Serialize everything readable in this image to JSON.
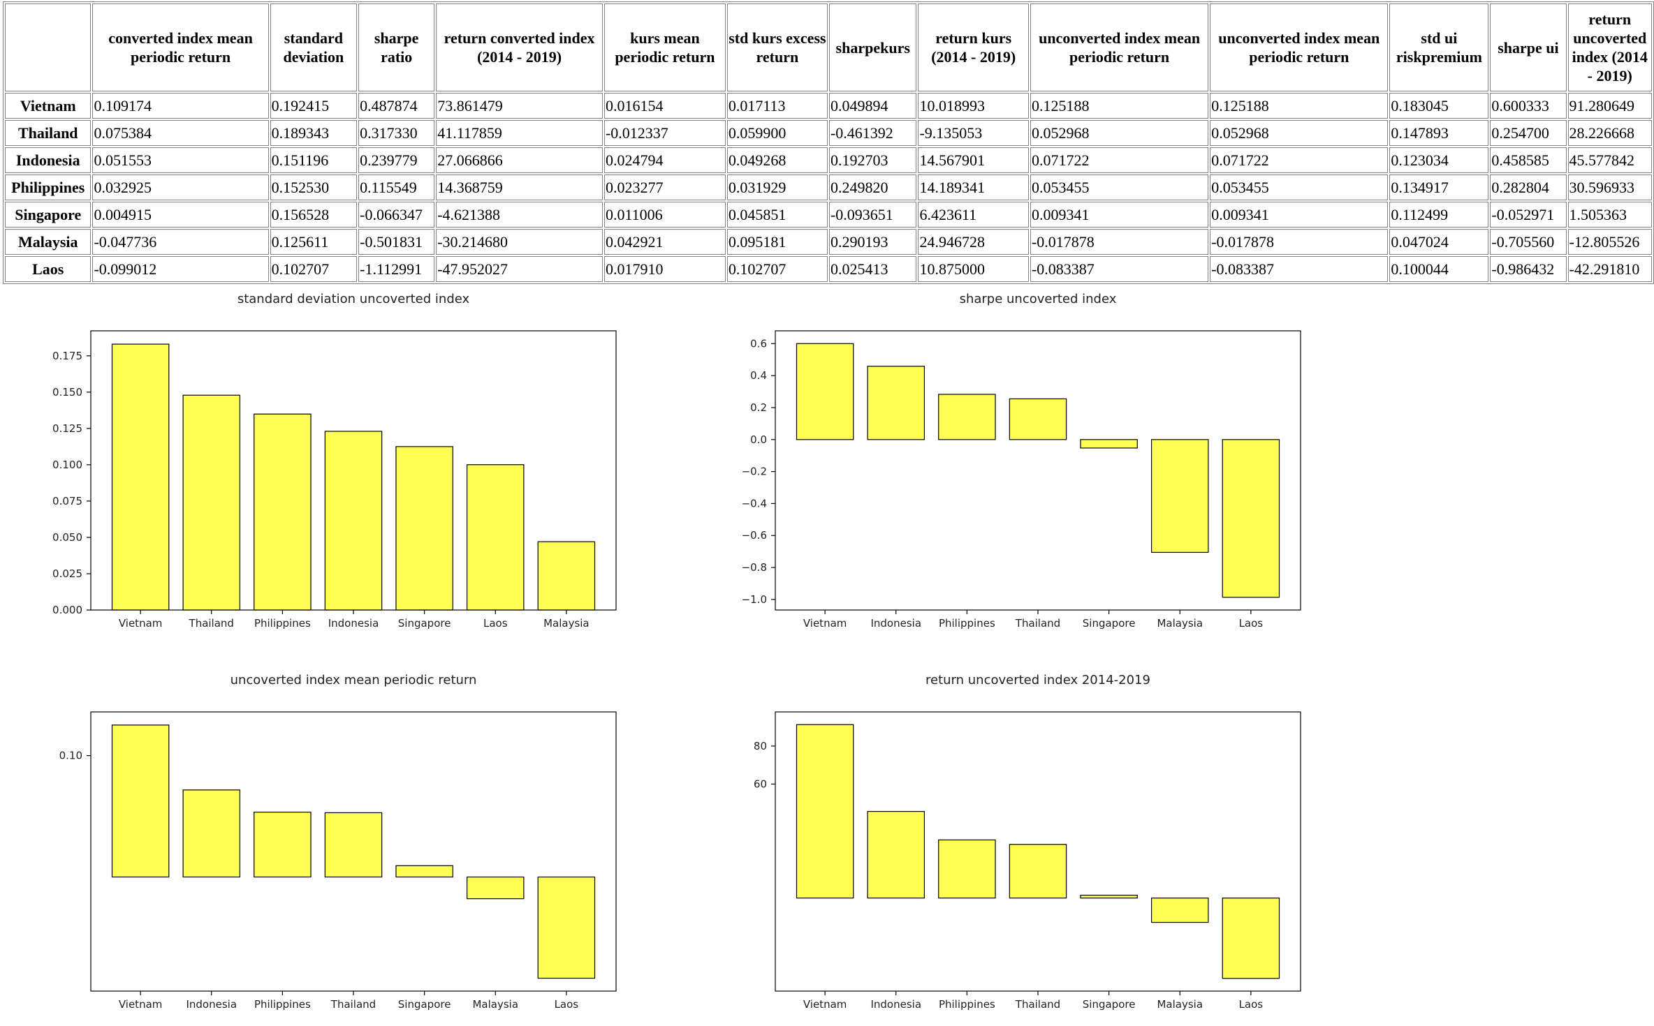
{
  "table": {
    "columns": [
      "",
      "converted index mean periodic return",
      "standard deviation",
      "sharpe ratio",
      "return converted index (2014 - 2019)",
      "kurs mean periodic return",
      "std kurs excess return",
      "sharpekurs",
      "return kurs (2014 - 2019)",
      "unconverted index mean periodic return",
      "unconverted index mean periodic return",
      "std ui riskpremium",
      "sharpe ui",
      "return uncoverted index (2014 - 2019)"
    ],
    "rows": [
      {
        "country": "Vietnam",
        "values": [
          "0.109174",
          "0.192415",
          "0.487874",
          "73.861479",
          "0.016154",
          "0.017113",
          "0.049894",
          "10.018993",
          "0.125188",
          "0.125188",
          "0.183045",
          "0.600333",
          "91.280649"
        ]
      },
      {
        "country": "Thailand",
        "values": [
          "0.075384",
          "0.189343",
          "0.317330",
          "41.117859",
          "-0.012337",
          "0.059900",
          "-0.461392",
          "-9.135053",
          "0.052968",
          "0.052968",
          "0.147893",
          "0.254700",
          "28.226668"
        ]
      },
      {
        "country": "Indonesia",
        "values": [
          "0.051553",
          "0.151196",
          "0.239779",
          "27.066866",
          "0.024794",
          "0.049268",
          "0.192703",
          "14.567901",
          "0.071722",
          "0.071722",
          "0.123034",
          "0.458585",
          "45.577842"
        ]
      },
      {
        "country": "Philippines",
        "values": [
          "0.032925",
          "0.152530",
          "0.115549",
          "14.368759",
          "0.023277",
          "0.031929",
          "0.249820",
          "14.189341",
          "0.053455",
          "0.053455",
          "0.134917",
          "0.282804",
          "30.596933"
        ]
      },
      {
        "country": "Singapore",
        "values": [
          "0.004915",
          "0.156528",
          "-0.066347",
          "-4.621388",
          "0.011006",
          "0.045851",
          "-0.093651",
          "6.423611",
          "0.009341",
          "0.009341",
          "0.112499",
          "-0.052971",
          "1.505363"
        ]
      },
      {
        "country": "Malaysia",
        "values": [
          "-0.047736",
          "0.125611",
          "-0.501831",
          "-30.214680",
          "0.042921",
          "0.095181",
          "0.290193",
          "24.946728",
          "-0.017878",
          "-0.017878",
          "0.047024",
          "-0.705560",
          "-12.805526"
        ]
      },
      {
        "country": "Laos",
        "values": [
          "-0.099012",
          "0.102707",
          "-1.112991",
          "-47.952027",
          "0.017910",
          "0.102707",
          "0.025413",
          "10.875000",
          "-0.083387",
          "-0.083387",
          "0.100044",
          "-0.986432",
          "-42.291810"
        ]
      }
    ]
  },
  "chart_data": [
    {
      "type": "bar",
      "title": "standard deviation uncoverted index",
      "categories": [
        "Vietnam",
        "Thailand",
        "Philippines",
        "Indonesia",
        "Singapore",
        "Laos",
        "Malaysia"
      ],
      "values": [
        0.183045,
        0.147893,
        0.134917,
        0.123034,
        0.112499,
        0.100044,
        0.047024
      ],
      "ylim": [
        0,
        0.1922
      ],
      "yticks": [
        0.0,
        0.025,
        0.05,
        0.075,
        0.1,
        0.125,
        0.15,
        0.175
      ],
      "ytick_labels": [
        "0.000",
        "0.025",
        "0.050",
        "0.075",
        "0.100",
        "0.125",
        "0.150",
        "0.175"
      ],
      "bar_color": "#ffff55",
      "grid": false
    },
    {
      "type": "bar",
      "title": "sharpe uncoverted index",
      "categories": [
        "Vietnam",
        "Indonesia",
        "Philippines",
        "Thailand",
        "Singapore",
        "Malaysia",
        "Laos"
      ],
      "values": [
        0.600333,
        0.458585,
        0.282804,
        0.2547,
        -0.052971,
        -0.70556,
        -0.986432
      ],
      "ylim": [
        -1.066,
        0.68
      ],
      "yticks": [
        -1.0,
        -0.8,
        -0.6,
        -0.4,
        -0.2,
        0.0,
        0.2,
        0.4,
        0.6
      ],
      "ytick_labels": [
        "−1.0",
        "−0.8",
        "−0.6",
        "−0.4",
        "−0.2",
        "0.0",
        "0.2",
        "0.4",
        "0.6"
      ],
      "bar_color": "#ffff55",
      "grid": false
    },
    {
      "type": "bar",
      "title": "uncoverted index mean periodic return",
      "categories": [
        "Vietnam",
        "Indonesia",
        "Philippines",
        "Thailand",
        "Singapore",
        "Malaysia",
        "Laos"
      ],
      "values": [
        0.125188,
        0.071722,
        0.053455,
        0.052968,
        0.009341,
        -0.017878,
        -0.083387
      ],
      "ylim": [
        -0.094,
        0.136
      ],
      "yticks": [
        0.1
      ],
      "ytick_labels": [
        "0.10"
      ],
      "bar_color": "#ffff55",
      "grid": false
    },
    {
      "type": "bar",
      "title": "return uncoverted index 2014-2019",
      "categories": [
        "Vietnam",
        "Indonesia",
        "Philippines",
        "Thailand",
        "Singapore",
        "Malaysia",
        "Laos"
      ],
      "values": [
        91.280649,
        45.577842,
        30.596933,
        28.226668,
        1.505363,
        -12.805526,
        -42.29181
      ],
      "ylim": [
        -48.97,
        97.96
      ],
      "yticks": [
        60,
        80
      ],
      "ytick_labels": [
        "60",
        "80"
      ],
      "bar_color": "#ffff55",
      "grid": false
    }
  ]
}
